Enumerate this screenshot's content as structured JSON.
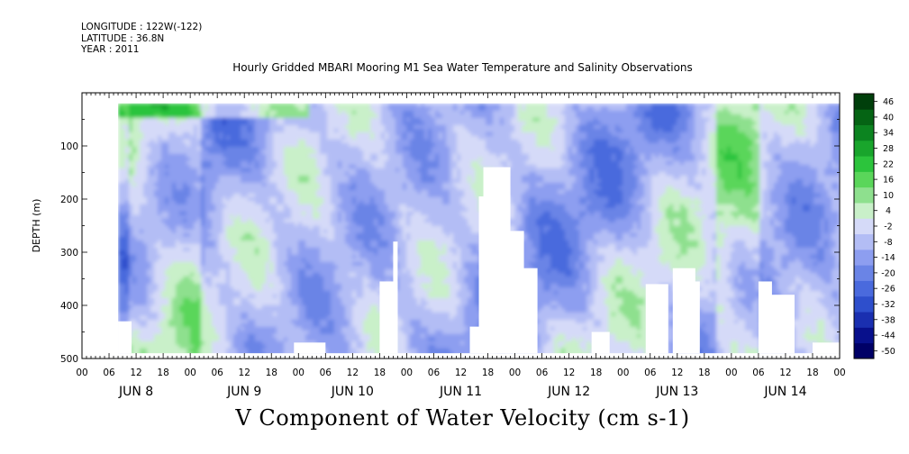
{
  "meta": {
    "longitude": "LONGITUDE : 122W(-122)",
    "latitude": "LATITUDE : 36.8N",
    "year": "YEAR : 2011"
  },
  "chart_data": {
    "type": "heatmap",
    "title": "Hourly Gridded MBARI Mooring M1 Sea Water Temperature and Salinity Observations",
    "xlabel": "V Component of Water Velocity (cm s-1)",
    "ylabel": "DEPTH (m)",
    "ylim": [
      500,
      0
    ],
    "y_ticks": [
      100,
      200,
      300,
      400,
      500
    ],
    "y_tick_labels": [
      "100",
      "200",
      "300",
      "400",
      "500"
    ],
    "data_depth_range": [
      20,
      490
    ],
    "x_hours_range": [
      0,
      168
    ],
    "x_tick_step_hours": 6,
    "x_tick_labels": [
      "00",
      "06",
      "12",
      "18",
      "00",
      "06",
      "12",
      "18",
      "00",
      "06",
      "12",
      "18",
      "00",
      "06",
      "12",
      "18",
      "00",
      "06",
      "12",
      "18",
      "00",
      "06",
      "12",
      "18",
      "00",
      "06",
      "12",
      "18",
      "00"
    ],
    "day_labels": [
      "JUN  8",
      "JUN  9",
      "JUN 10",
      "JUN 11",
      "JUN 12",
      "JUN 13",
      "JUN 14"
    ],
    "colorbar": {
      "levels": [
        -50,
        -44,
        -38,
        -32,
        -26,
        -20,
        -14,
        -8,
        -2,
        4,
        10,
        16,
        22,
        28,
        34,
        40,
        46
      ],
      "labels": [
        "46",
        "40",
        "34",
        "28",
        "22",
        "16",
        "10",
        "4",
        "-2",
        "-8",
        "-14",
        "-20",
        "-26",
        "-32",
        "-38",
        "-44",
        "-50"
      ],
      "colors": [
        "#000066",
        "#08108c",
        "#1a2fb0",
        "#2e4fcc",
        "#4a6add",
        "#6a84e6",
        "#8d9ef0",
        "#b3bdf5",
        "#d5daf8",
        "#c9f0c9",
        "#8ee08e",
        "#5ad65a",
        "#2cc43c",
        "#19a52c",
        "#0c8420",
        "#056414",
        "#003f0b"
      ]
    },
    "value_range_shown": [
      -30,
      30
    ]
  }
}
